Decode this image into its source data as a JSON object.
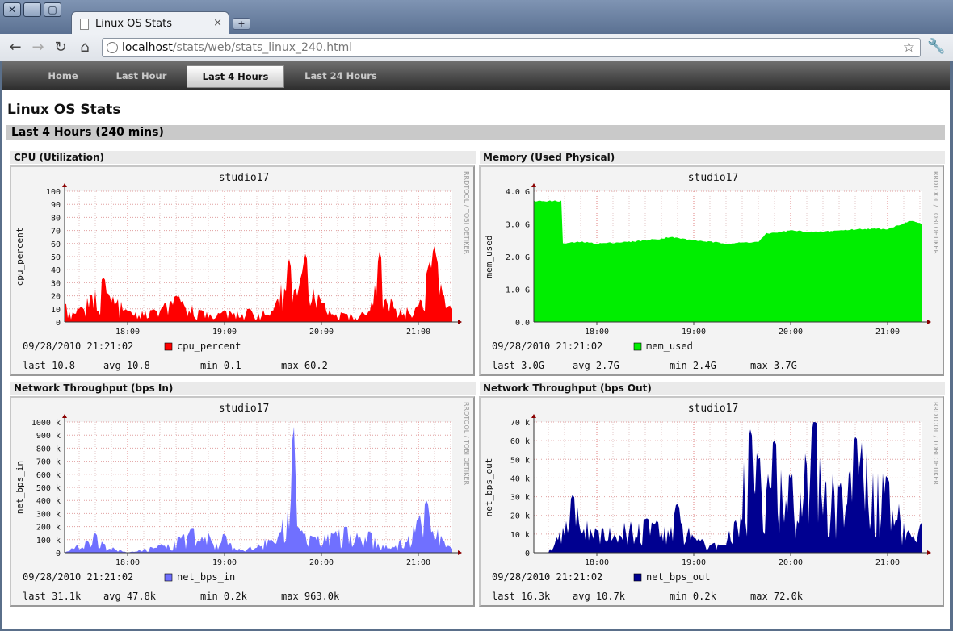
{
  "window": {
    "tab_title": "Linux OS Stats",
    "tab_close": "×",
    "new_tab": "+",
    "url_host": "localhost",
    "url_path": "/stats/web/stats_linux_240.html"
  },
  "nav": {
    "items": [
      {
        "label": "Home",
        "active": false
      },
      {
        "label": "Last Hour",
        "active": false
      },
      {
        "label": "Last 4 Hours",
        "active": true
      },
      {
        "label": "Last 24 Hours",
        "active": false
      }
    ]
  },
  "page": {
    "title": "Linux OS Stats",
    "section": "Last 4 Hours (240 mins)"
  },
  "graphs": [
    {
      "heading": "CPU (Utilization)",
      "chart_title": "studio17",
      "ylabel": "cpu_percent",
      "watermark": "RRDTOOL / TOBI OETIKER",
      "timestamp": "09/28/2010 21:21:02",
      "legend": "cpu_percent",
      "color": "#ff0000",
      "yticks": [
        "0",
        "10",
        "20",
        "30",
        "40",
        "50",
        "60",
        "70",
        "80",
        "90",
        "100"
      ],
      "xticks": [
        "18:00",
        "19:00",
        "20:00",
        "21:00"
      ],
      "stats": {
        "last": "last 10.8",
        "avg": "avg 10.8",
        "min": "min 0.1",
        "max": "max 60.2"
      }
    },
    {
      "heading": "Memory (Used Physical)",
      "chart_title": "studio17",
      "ylabel": "mem_used",
      "watermark": "RRDTOOL / TOBI OETIKER",
      "timestamp": "09/28/2010 21:21:02",
      "legend": "mem_used",
      "color": "#00ee00",
      "yticks": [
        "0.0",
        "1.0 G",
        "2.0 G",
        "3.0 G",
        "4.0 G"
      ],
      "xticks": [
        "18:00",
        "19:00",
        "20:00",
        "21:00"
      ],
      "stats": {
        "last": "last 3.0G",
        "avg": "avg 2.7G",
        "min": "min 2.4G",
        "max": "max 3.7G"
      }
    },
    {
      "heading": "Network Throughput (bps In)",
      "chart_title": "studio17",
      "ylabel": "net_bps_in",
      "watermark": "RRDTOOL / TOBI OETIKER",
      "timestamp": "09/28/2010 21:21:02",
      "legend": "net_bps_in",
      "color": "#7070ff",
      "yticks": [
        "0",
        "100 k",
        "200 k",
        "300 k",
        "400 k",
        "500 k",
        "600 k",
        "700 k",
        "800 k",
        "900 k",
        "1000 k"
      ],
      "xticks": [
        "18:00",
        "19:00",
        "20:00",
        "21:00"
      ],
      "stats": {
        "last": "last 31.1k",
        "avg": "avg 47.8k",
        "min": "min 0.2k",
        "max": "max 963.0k"
      }
    },
    {
      "heading": "Network Throughput (bps Out)",
      "chart_title": "studio17",
      "ylabel": "net_bps_out",
      "watermark": "RRDTOOL / TOBI OETIKER",
      "timestamp": "09/28/2010 21:21:02",
      "legend": "net_bps_out",
      "color": "#000090",
      "yticks": [
        "0",
        "10 k",
        "20 k",
        "30 k",
        "40 k",
        "50 k",
        "60 k",
        "70 k"
      ],
      "xticks": [
        "18:00",
        "19:00",
        "20:00",
        "21:00"
      ],
      "stats": {
        "last": "last 16.3k",
        "avg": "avg 10.7k",
        "min": "min 0.2k",
        "max": "max 72.0k"
      }
    }
  ],
  "chart_data": [
    {
      "type": "area",
      "title": "studio17",
      "ylabel": "cpu_percent",
      "ylim": [
        0,
        100
      ],
      "x_ticks": [
        "18:00",
        "19:00",
        "20:00",
        "21:00"
      ],
      "x": [
        "17:21",
        "17:30",
        "17:45",
        "18:00",
        "18:15",
        "18:30",
        "18:45",
        "19:00",
        "19:15",
        "19:30",
        "19:40",
        "19:45",
        "19:50",
        "20:00",
        "20:15",
        "20:30",
        "20:36",
        "20:45",
        "21:00",
        "21:06",
        "21:10",
        "21:15",
        "21:21"
      ],
      "series": [
        {
          "name": "cpu_percent",
          "values": [
            14,
            10,
            34,
            8,
            9,
            20,
            9,
            8,
            10,
            8,
            48,
            20,
            52,
            15,
            6,
            8,
            54,
            10,
            12,
            42,
            58,
            22,
            10
          ]
        }
      ]
    },
    {
      "type": "area",
      "title": "studio17",
      "ylabel": "mem_used",
      "ylim": [
        0,
        4.0
      ],
      "x_ticks": [
        "18:00",
        "19:00",
        "20:00",
        "21:00"
      ],
      "x": [
        "17:21",
        "17:38",
        "17:39",
        "17:50",
        "18:00",
        "18:20",
        "18:40",
        "18:45",
        "19:00",
        "19:20",
        "19:40",
        "19:45",
        "20:00",
        "20:15",
        "20:30",
        "20:45",
        "21:00",
        "21:15",
        "21:21"
      ],
      "series": [
        {
          "name": "mem_used",
          "values": [
            3.7,
            3.7,
            2.4,
            2.45,
            2.4,
            2.45,
            2.55,
            2.6,
            2.5,
            2.4,
            2.45,
            2.7,
            2.8,
            2.75,
            2.8,
            2.85,
            2.85,
            3.1,
            3.0
          ]
        }
      ]
    },
    {
      "type": "area",
      "title": "studio17",
      "ylabel": "net_bps_in",
      "ylim": [
        0,
        1000
      ],
      "x_ticks": [
        "18:00",
        "19:00",
        "20:00",
        "21:00"
      ],
      "x": [
        "17:21",
        "17:40",
        "17:45",
        "18:00",
        "18:20",
        "18:40",
        "19:00",
        "19:10",
        "19:35",
        "19:43",
        "19:45",
        "19:55",
        "20:15",
        "20:30",
        "20:45",
        "21:00",
        "21:05",
        "21:15",
        "21:21"
      ],
      "series": [
        {
          "name": "net_bps_in",
          "values": [
            0,
            150,
            70,
            0,
            60,
            190,
            140,
            20,
            160,
            963,
            200,
            120,
            200,
            160,
            40,
            260,
            400,
            100,
            31
          ]
        }
      ]
    },
    {
      "type": "area",
      "title": "studio17",
      "ylabel": "net_bps_out",
      "ylim": [
        0,
        70
      ],
      "x_ticks": [
        "18:00",
        "19:00",
        "20:00",
        "21:00"
      ],
      "x": [
        "17:21",
        "17:30",
        "17:45",
        "18:00",
        "18:30",
        "18:50",
        "19:00",
        "19:20",
        "19:35",
        "19:40",
        "19:50",
        "20:00",
        "20:15",
        "20:30",
        "20:40",
        "21:00",
        "21:15",
        "21:21"
      ],
      "series": [
        {
          "name": "net_bps_out",
          "values": [
            0,
            0,
            31,
            12,
            18,
            26,
            8,
            4,
            66,
            50,
            60,
            40,
            72,
            35,
            62,
            40,
            8,
            16
          ]
        }
      ]
    }
  ]
}
